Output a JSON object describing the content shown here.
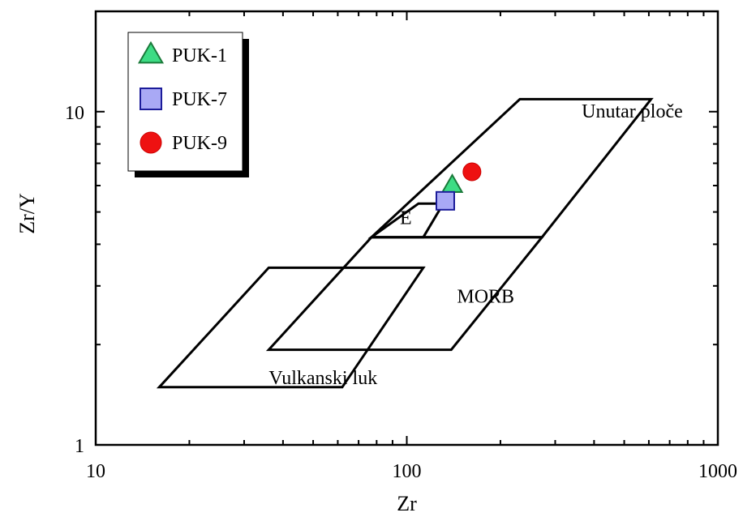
{
  "chart_data": {
    "type": "scatter",
    "title": "",
    "xlabel": "Zr",
    "ylabel": "Zr/Y",
    "xscale": "log",
    "yscale": "log",
    "xlim": [
      10,
      1000
    ],
    "ylim": [
      1,
      20
    ],
    "x_ticks": [
      {
        "value": 10,
        "label": "10"
      },
      {
        "value": 100,
        "label": "100"
      },
      {
        "value": 1000,
        "label": "1000"
      }
    ],
    "y_ticks": [
      {
        "value": 1,
        "label": "1"
      },
      {
        "value": 10,
        "label": "10"
      }
    ],
    "grid": false,
    "legend_position": "top-left",
    "series": [
      {
        "name": "PUK-1",
        "marker": "triangle",
        "color": "#3ddc84",
        "stroke": "#1a7a3a",
        "points": [
          {
            "x": 140,
            "y": 6.0
          }
        ]
      },
      {
        "name": "PUK-7",
        "marker": "square",
        "color": "#a9a9f5",
        "stroke": "#1c1c9a",
        "points": [
          {
            "x": 133,
            "y": 5.4
          }
        ]
      },
      {
        "name": "PUK-9",
        "marker": "circle",
        "color": "#ee1111",
        "stroke": "#cc0000",
        "points": [
          {
            "x": 162,
            "y": 6.6
          }
        ]
      }
    ],
    "fields": [
      {
        "name": "Unutar ploče",
        "label_at": {
          "x": 365,
          "y": 9.6
        },
        "polygon": [
          [
            77,
            4.2
          ],
          [
            231,
            10.9
          ],
          [
            610,
            10.9
          ],
          [
            272,
            4.2
          ]
        ]
      },
      {
        "name": "E",
        "label_at": {
          "x": 95,
          "y": 4.6
        },
        "polygon": [
          [
            109,
            5.3
          ],
          [
            131,
            5.3
          ],
          [
            113,
            4.2
          ],
          [
            77,
            4.2
          ]
        ]
      },
      {
        "name": "MORB",
        "label_at": {
          "x": 145,
          "y": 2.67
        },
        "polygon": [
          [
            36,
            1.93
          ],
          [
            77,
            4.2
          ],
          [
            272,
            4.2
          ],
          [
            139,
            1.93
          ]
        ]
      },
      {
        "name": "Vulkanski luk",
        "label_at": {
          "x": 36,
          "y": 1.52
        },
        "polygon": [
          [
            16,
            1.49
          ],
          [
            36,
            3.4
          ],
          [
            113,
            3.4
          ],
          [
            62,
            1.49
          ]
        ]
      }
    ]
  }
}
